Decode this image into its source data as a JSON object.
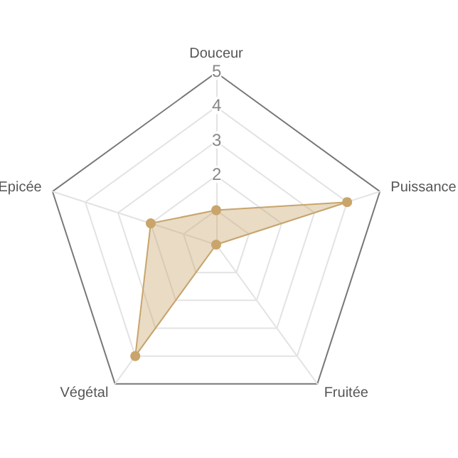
{
  "chart_data": {
    "type": "radar",
    "categories": [
      "Douceur",
      "Puissance",
      "Fruitée",
      "Végétal",
      "Epicée"
    ],
    "series": [
      {
        "color": "#c9a56c",
        "values": [
          1,
          4,
          0,
          4,
          2
        ]
      }
    ],
    "ylim": [
      0,
      5
    ],
    "yticks": [
      2,
      3,
      4,
      5
    ],
    "grid": true,
    "marker": "circle"
  }
}
